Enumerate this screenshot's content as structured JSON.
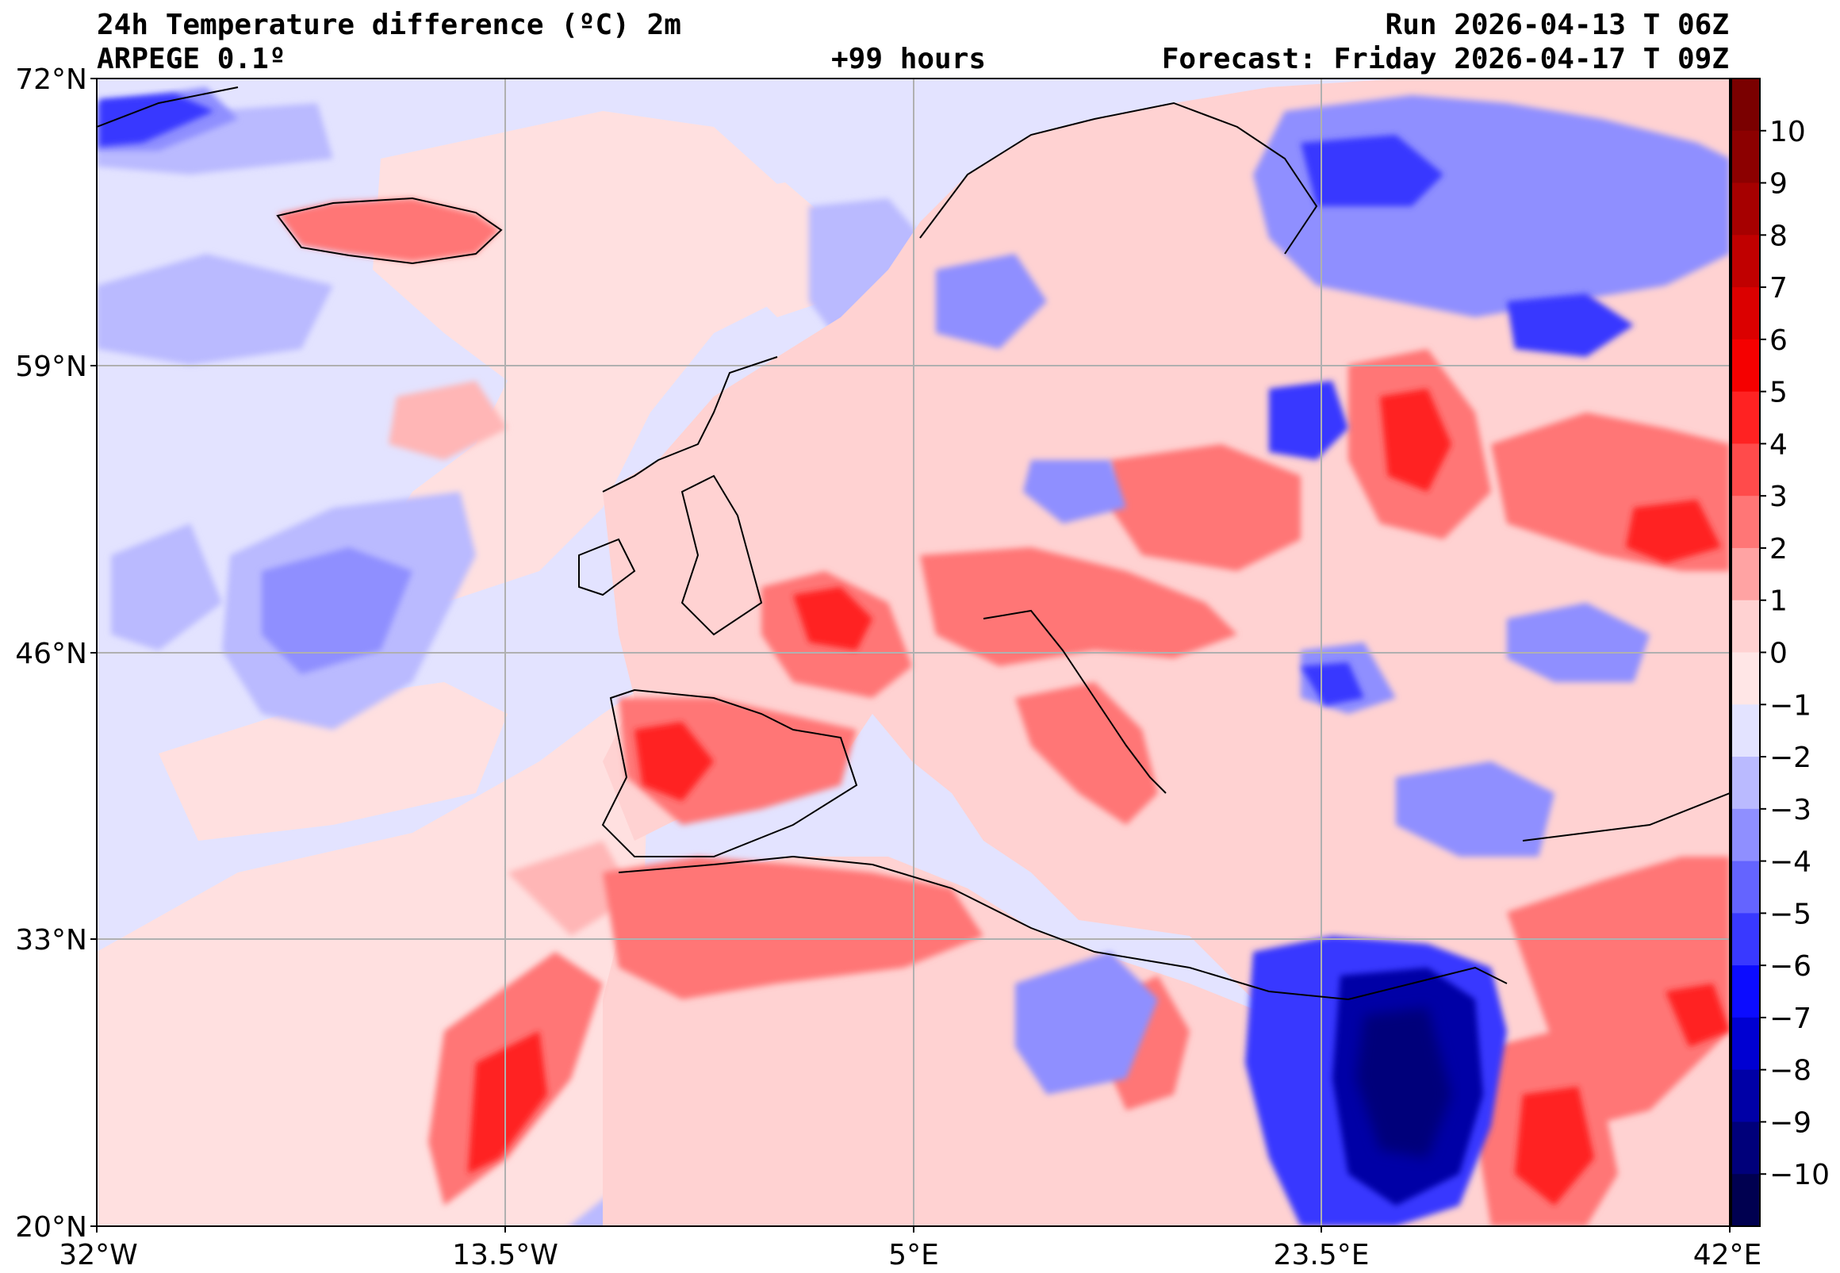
{
  "header": {
    "title": "24h Temperature difference (ºC) 2m",
    "model": "ARPEGE 0.1º",
    "lead": "+99 hours",
    "run": "Run 2026-04-13 T 06Z",
    "forecast": "Forecast: Friday 2026-04-17 T 09Z"
  },
  "map": {
    "projection": "plate-carree",
    "lon_range": [
      -32,
      42
    ],
    "lat_range": [
      20,
      72
    ],
    "lat_labels": [
      "72°N",
      "59°N",
      "46°N",
      "33°N",
      "20°N"
    ],
    "lon_labels": [
      "32°W",
      "13.5°W",
      "5°E",
      "23.5°E",
      "42°E"
    ],
    "gridlines": true
  },
  "colorbar": {
    "ticks": [
      "10",
      "9",
      "8",
      "7",
      "6",
      "5",
      "4",
      "3",
      "2",
      "1",
      "0",
      "−1",
      "−2",
      "−3",
      "−4",
      "−5",
      "−6",
      "−7",
      "−8",
      "−9",
      "−10"
    ],
    "colors": [
      "#7a0000",
      "#8c0000",
      "#a60000",
      "#c00000",
      "#db0000",
      "#f50000",
      "#ff2222",
      "#ff4b4b",
      "#ff7676",
      "#ffa3a3",
      "#ffd2d2",
      "#ffe6e6",
      "#e3e3ff",
      "#babaff",
      "#8f8fff",
      "#6464ff",
      "#3939ff",
      "#0c0cff",
      "#0000d2",
      "#0000a6",
      "#00007a",
      "#000050"
    ]
  }
}
